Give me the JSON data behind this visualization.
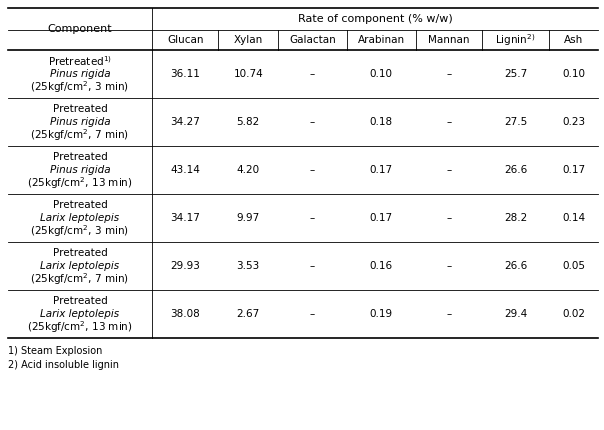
{
  "title_header": "Rate of component (% w/w)",
  "col_header": "Component",
  "sub_headers_display": [
    "Glucan",
    "Xylan",
    "Galactan",
    "Arabinan",
    "Mannan",
    "Lignin$^{2)}$",
    "Ash"
  ],
  "rows": [
    {
      "label_lines": [
        "Pretreated$^{1)}$",
        "Pinus rigida",
        "(25kgf/cm$^2$, 3 min)"
      ],
      "label_italic": [
        false,
        true,
        false
      ],
      "values": [
        "36.11",
        "10.74",
        "–",
        "0.10",
        "–",
        "25.7",
        "0.10"
      ]
    },
    {
      "label_lines": [
        "Pretreated",
        "Pinus rigida",
        "(25kgf/cm$^2$, 7 min)"
      ],
      "label_italic": [
        false,
        true,
        false
      ],
      "values": [
        "34.27",
        "5.82",
        "–",
        "0.18",
        "–",
        "27.5",
        "0.23"
      ]
    },
    {
      "label_lines": [
        "Pretreated",
        "Pinus rigida",
        "(25kgf/cm$^2$, 13 min)"
      ],
      "label_italic": [
        false,
        true,
        false
      ],
      "values": [
        "43.14",
        "4.20",
        "–",
        "0.17",
        "–",
        "26.6",
        "0.17"
      ]
    },
    {
      "label_lines": [
        "Pretreated",
        "Larix leptolepis",
        "(25kgf/cm$^2$, 3 min)"
      ],
      "label_italic": [
        false,
        true,
        false
      ],
      "values": [
        "34.17",
        "9.97",
        "–",
        "0.17",
        "–",
        "28.2",
        "0.14"
      ]
    },
    {
      "label_lines": [
        "Pretreated",
        "Larix leptolepis",
        "(25kgf/cm$^2$, 7 min)"
      ],
      "label_italic": [
        false,
        true,
        false
      ],
      "values": [
        "29.93",
        "3.53",
        "–",
        "0.16",
        "–",
        "26.6",
        "0.05"
      ]
    },
    {
      "label_lines": [
        "Pretreated",
        "Larix leptolepis",
        "(25kgf/cm$^2$, 13 min)"
      ],
      "label_italic": [
        false,
        true,
        false
      ],
      "values": [
        "38.08",
        "2.67",
        "–",
        "0.19",
        "–",
        "29.4",
        "0.02"
      ]
    }
  ],
  "footnotes": [
    "1) Steam Explosion",
    "2) Acid insoluble lignin"
  ],
  "bg_color": "white",
  "text_color": "black",
  "font_size": 7.5,
  "header_font_size": 8.0,
  "col_widths_rel": [
    2.05,
    0.95,
    0.85,
    0.98,
    0.98,
    0.95,
    0.95,
    0.7
  ],
  "thick_lw": 1.2,
  "thin_lw": 0.6
}
